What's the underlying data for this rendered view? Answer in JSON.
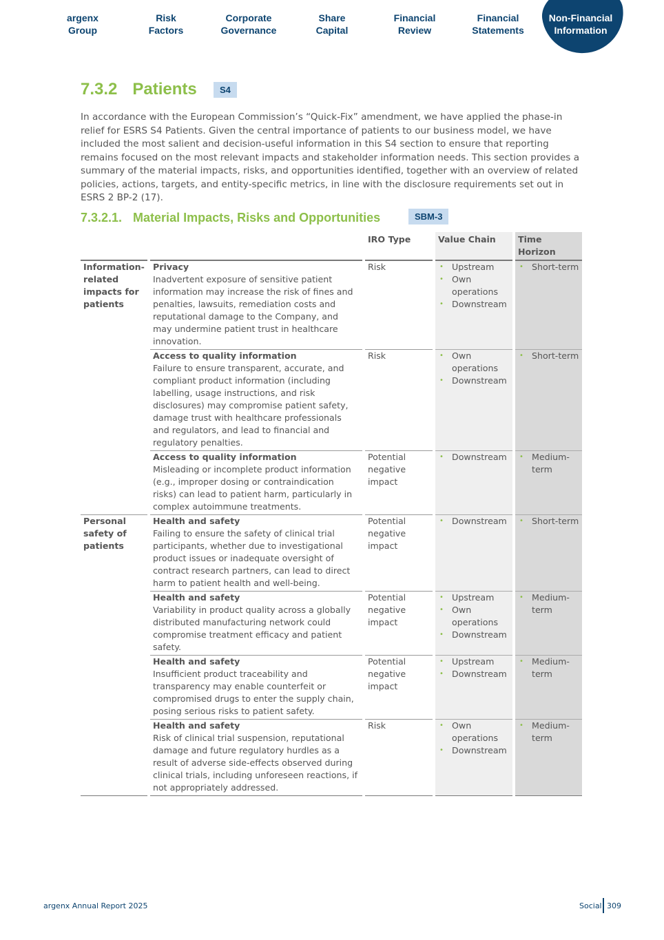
{
  "nav": [
    {
      "label": [
        "argenx",
        "Group"
      ]
    },
    {
      "label": [
        "Risk",
        "Factors"
      ]
    },
    {
      "label": [
        "Corporate",
        "Governance"
      ]
    },
    {
      "label": [
        "Share",
        "Capital"
      ]
    },
    {
      "label": [
        "Financial",
        "Review"
      ]
    },
    {
      "label": [
        "Financial",
        "Statements"
      ]
    },
    {
      "label": [
        "Non-Financial",
        "Information"
      ],
      "active": true
    }
  ],
  "section": {
    "number": "7.3.2",
    "title": "Patients",
    "badge": "S4"
  },
  "intro": "In accordance with the European Commission’s “Quick-Fix” amendment, we have applied the phase-in relief for ESRS S4 Patients. Given the central importance of patients to our business model, we have included the most salient and decision-useful information in this S4 section to ensure that reporting remains focused on the most relevant impacts and stakeholder information needs. This section provides a summary of the material impacts, risks, and opportunities identified, together with an overview of related policies, actions, targets, and entity-specific metrics, in line with the disclosure requirements set out in ESRS 2 BP-2 (17).",
  "subsection": {
    "number": "7.3.2.1.",
    "title": "Material Impacts, Risks and Opportunities",
    "badge": "SBM-3"
  },
  "table": {
    "headers": [
      "",
      "",
      "IRO Type",
      "Value Chain",
      "Time Horizon"
    ],
    "rows": [
      {
        "category": "Information-related impacts for patients",
        "span": 3,
        "title": "Privacy",
        "desc": "Inadvertent exposure of sensitive patient information may increase the risk of fines and penalties, lawsuits, remediation costs and reputational damage to the Company, and may undermine patient trust in healthcare innovation.",
        "type": "Risk",
        "chain": [
          "Upstream",
          "Own operations",
          "Downstream"
        ],
        "horizon": [
          "Short-term"
        ]
      },
      {
        "title": "Access to quality information",
        "desc": "Failure to ensure transparent, accurate, and compliant product information (including labelling, usage instructions, and risk disclosures) may compromise patient safety, damage trust with healthcare professionals and regulators, and lead to financial and regulatory penalties.",
        "type": "Risk",
        "chain": [
          "Own operations",
          "Downstream"
        ],
        "horizon": [
          "Short-term"
        ]
      },
      {
        "title": "Access to quality information",
        "desc": "Misleading or incomplete product information (e.g., improper dosing or contraindication risks) can lead to patient harm, particularly in complex autoimmune treatments.",
        "type": "Potential negative impact",
        "chain": [
          "Downstream"
        ],
        "horizon": [
          "Medium-term"
        ]
      },
      {
        "category": "Personal safety of patients",
        "span": 4,
        "title": "Health and safety",
        "desc": "Failing to ensure the safety of clinical trial participants, whether due to investigational product issues or inadequate oversight of contract research partners, can lead to direct harm to patient health and well-being.",
        "type": "Potential negative impact",
        "chain": [
          "Downstream"
        ],
        "horizon": [
          "Short-term"
        ]
      },
      {
        "title": "Health and safety",
        "desc": "Variability in product quality across a globally distributed manufacturing network could compromise treatment efficacy and patient safety.",
        "type": "Potential negative impact",
        "chain": [
          "Upstream",
          "Own operations",
          "Downstream"
        ],
        "horizon": [
          "Medium-term"
        ]
      },
      {
        "title": "Health and safety",
        "desc": "Insufficient product traceability and transparency may enable counterfeit or compromised drugs to enter the supply chain, posing serious risks to patient safety.",
        "type": "Potential negative impact",
        "chain": [
          "Upstream",
          "Downstream"
        ],
        "horizon": [
          "Medium-term"
        ]
      },
      {
        "title": "Health and safety",
        "desc": "Risk of clinical trial suspension, reputational damage and future regulatory hurdles as a result of adverse side-effects observed during clinical trials, including unforeseen reactions, if not appropriately addressed.",
        "type": "Risk",
        "chain": [
          "Own operations",
          "Downstream"
        ],
        "horizon": [
          "Medium-term"
        ]
      }
    ]
  },
  "footer": {
    "left": "argenx Annual Report 2025",
    "section": "Social",
    "page": "309"
  },
  "colors": {
    "accent": "#8dbf4a",
    "navy": "#0d4470",
    "badge": "#c7dbef"
  }
}
